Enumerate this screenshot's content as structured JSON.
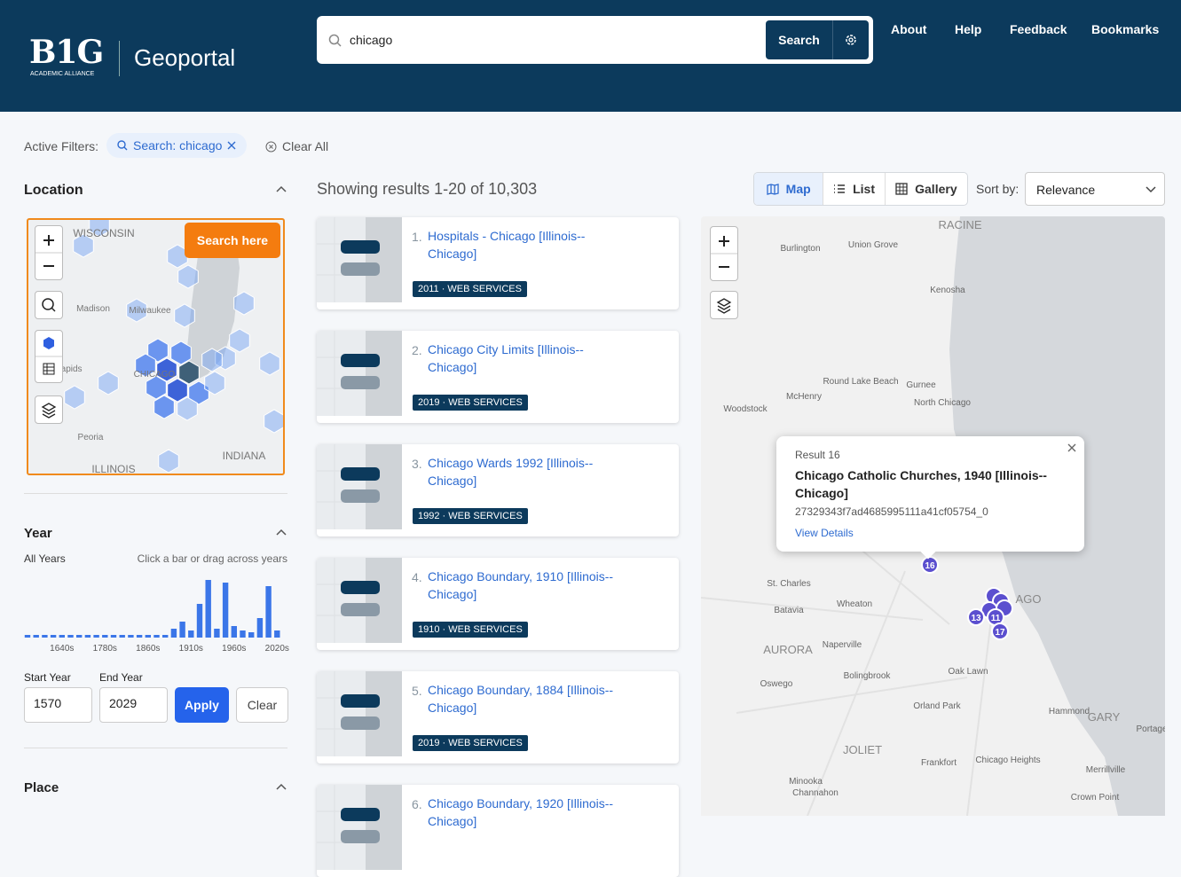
{
  "header": {
    "logo": "B1G",
    "logo_sub": "ACADEMIC ALLIANCE",
    "title": "Geoportal",
    "search_query": "chicago",
    "search_button": "Search",
    "nav": [
      "About",
      "Help",
      "Feedback",
      "Bookmarks"
    ]
  },
  "filters": {
    "label": "Active Filters:",
    "chips": [
      "Search: chicago"
    ],
    "clear": "Clear All"
  },
  "sidebar": {
    "location": {
      "title": "Location",
      "search_here": "Search here",
      "map_labels": [
        "WISCONSIN",
        "Madison",
        "Milwaukee",
        "Rapids",
        "CHICAGO",
        "Peoria",
        "ILLINOIS",
        "INDIANA"
      ]
    },
    "year": {
      "title": "Year",
      "all_label": "All Years",
      "hint": "Click a bar or drag across years",
      "histogram": {
        "categories": [
          null,
          null,
          null,
          null,
          "1640s",
          null,
          null,
          null,
          null,
          "1780s",
          null,
          null,
          null,
          null,
          "1860s",
          null,
          null,
          null,
          null,
          "1910s",
          null,
          null,
          null,
          null,
          "1960s",
          null,
          null,
          null,
          null,
          "2020s"
        ],
        "values": [
          3,
          3,
          3,
          3,
          3,
          3,
          3,
          3,
          3,
          3,
          3,
          3,
          3,
          3,
          3,
          3,
          3,
          10,
          18,
          8,
          38,
          65,
          10,
          62,
          13,
          8,
          6,
          22,
          58,
          8
        ]
      },
      "start_label": "Start Year",
      "end_label": "End Year",
      "start_value": 1570,
      "end_value": 2029,
      "apply": "Apply",
      "clear": "Clear"
    },
    "place": {
      "title": "Place"
    }
  },
  "results": {
    "summary": "Showing results 1-20 of 10,303",
    "views": [
      "Map",
      "List",
      "Gallery"
    ],
    "sort_label": "Sort by:",
    "sort_value": "Relevance",
    "items": [
      {
        "number": "1.",
        "title": "Hospitals - Chicago [Illinois--Chicago]",
        "badge": "2011 · WEB SERVICES"
      },
      {
        "number": "2.",
        "title": "Chicago City Limits [Illinois--Chicago]",
        "badge": "2019 · WEB SERVICES"
      },
      {
        "number": "3.",
        "title": "Chicago Wards 1992 [Illinois--Chicago]",
        "badge": "1992 · WEB SERVICES"
      },
      {
        "number": "4.",
        "title": "Chicago Boundary, 1910 [Illinois--Chicago]",
        "badge": "1910 · WEB SERVICES"
      },
      {
        "number": "5.",
        "title": "Chicago Boundary, 1884 [Illinois--Chicago]",
        "badge": "2019 · WEB SERVICES"
      },
      {
        "number": "6.",
        "title": "Chicago Boundary, 1920 [Illinois--Chicago]"
      }
    ]
  },
  "map": {
    "labels": [
      "RACINE",
      "Burlington",
      "Union Grove",
      "Kenosha",
      "Round Lake Beach",
      "Gurnee",
      "McHenry",
      "North Chicago",
      "Woodstock",
      "St. Charles",
      "Batavia",
      "Wheaton",
      "Naperville",
      "AURORA",
      "Oswego",
      "Bolingbrook",
      "Oak Lawn",
      "Orland Park",
      "Hammond",
      "GARY",
      "Portage",
      "JOLIET",
      "Frankfort",
      "Chicago Heights",
      "Merrillville",
      "Minooka",
      "Channahon",
      "Crown Point",
      "AGO"
    ],
    "markers": [
      "16",
      "13",
      "11",
      "17"
    ],
    "popup": {
      "heading": "Result 16",
      "title": "Chicago Catholic Churches, 1940 [Illinois--Chicago]",
      "id": "27329343f7ad4685995111a41cf05754_0",
      "link": "View Details"
    }
  }
}
